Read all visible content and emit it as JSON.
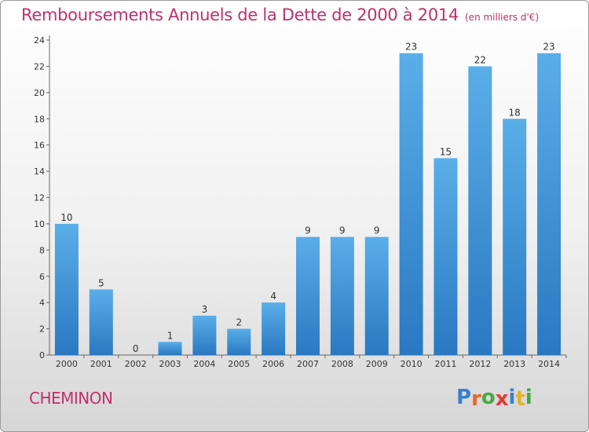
{
  "chart_data": {
    "type": "bar",
    "title": "Remboursements Annuels de la Dette de 2000 à 2014",
    "unit_note": "(en milliers d'€)",
    "categories": [
      "2000",
      "2001",
      "2002",
      "2003",
      "2004",
      "2005",
      "2006",
      "2007",
      "2008",
      "2009",
      "2010",
      "2011",
      "2012",
      "2013",
      "2014"
    ],
    "values": [
      10,
      5,
      0,
      1,
      3,
      2,
      4,
      9,
      9,
      9,
      23,
      15,
      22,
      18,
      23
    ],
    "ylim": [
      0,
      24
    ],
    "yticks": [
      0,
      2,
      4,
      6,
      8,
      10,
      12,
      14,
      16,
      18,
      20,
      22,
      24
    ],
    "grid": false,
    "bar_color": "#3d8fd4",
    "title_color": "#c0306a"
  },
  "footer": {
    "commune": "CHEMINON",
    "brand_letters": [
      {
        "ch": "P",
        "color": "#3a7fd0"
      },
      {
        "ch": "r",
        "color": "#e2662b"
      },
      {
        "ch": "o",
        "color": "#46a83f"
      },
      {
        "ch": "x",
        "color": "#e23a3a"
      },
      {
        "ch": "i",
        "color": "#3a7fd0"
      },
      {
        "ch": "t",
        "color": "#e2b22b"
      },
      {
        "ch": "i",
        "color": "#46a83f"
      }
    ]
  }
}
